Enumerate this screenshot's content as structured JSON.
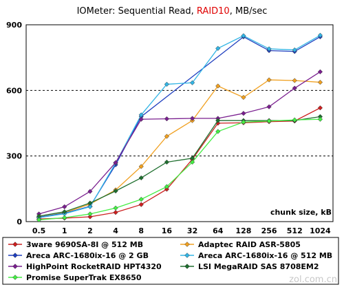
{
  "chart_data": {
    "type": "line",
    "title_parts": [
      "IOMeter: Sequential Read, ",
      "RAID10",
      ", MB/sec"
    ],
    "xlabel": "chunk size, kB",
    "ylabel": "",
    "categories": [
      "0.5",
      "1",
      "2",
      "4",
      "8",
      "16",
      "32",
      "64",
      "128",
      "256",
      "512",
      "1024"
    ],
    "ylim": [
      0,
      900
    ],
    "yticks": [
      "0",
      "300",
      "600",
      "900"
    ],
    "grid": "horizontal dashed",
    "legend_position": "bottom",
    "series": [
      {
        "name": "3ware 9690SA-8I @ 512 MB",
        "color": "#cc1f1f",
        "values": [
          12,
          16,
          22,
          42,
          78,
          148,
          285,
          450,
          452,
          457,
          460,
          520
        ]
      },
      {
        "name": "Adaptec RAID ASR-5805",
        "color": "#f0a020",
        "values": [
          20,
          40,
          80,
          145,
          252,
          390,
          462,
          620,
          568,
          648,
          645,
          637
        ]
      },
      {
        "name": "Areca ARC-1680ix-16 @ 2 GB",
        "color": "#1f3fbf",
        "values": [
          20,
          38,
          70,
          260,
          480,
          0,
          0,
          0,
          0,
          0,
          0,
          0
        ],
        "points_x": [
          0,
          1,
          2,
          3,
          4
        ],
        "tail": [
          [
            8,
            845
          ],
          [
            9,
            782
          ],
          [
            10,
            778
          ],
          [
            11,
            845
          ]
        ]
      },
      {
        "name": "Areca ARC-1680ix-16 @ 512 MB",
        "color": "#33b5e5",
        "values": [
          18,
          36,
          68,
          268,
          488,
          628,
          635,
          792,
          850,
          790,
          785,
          852
        ]
      },
      {
        "name": "HighPoint RocketRAID HPT4320",
        "color": "#7a1f8f",
        "values": [
          35,
          68,
          138,
          270,
          468,
          470,
          472,
          472,
          495,
          525,
          610,
          685
        ]
      },
      {
        "name": "LSI MegaRAID SAS 8708EM2",
        "color": "#1f6f2f",
        "values": [
          25,
          45,
          85,
          140,
          200,
          272,
          290,
          462,
          462,
          462,
          462,
          480
        ]
      },
      {
        "name": "Promise SuperTrak EX8650",
        "color": "#44ee44",
        "values": [
          8,
          18,
          35,
          62,
          102,
          160,
          272,
          412,
          455,
          460,
          465,
          468
        ]
      }
    ]
  },
  "watermark": "zol.com.cn"
}
